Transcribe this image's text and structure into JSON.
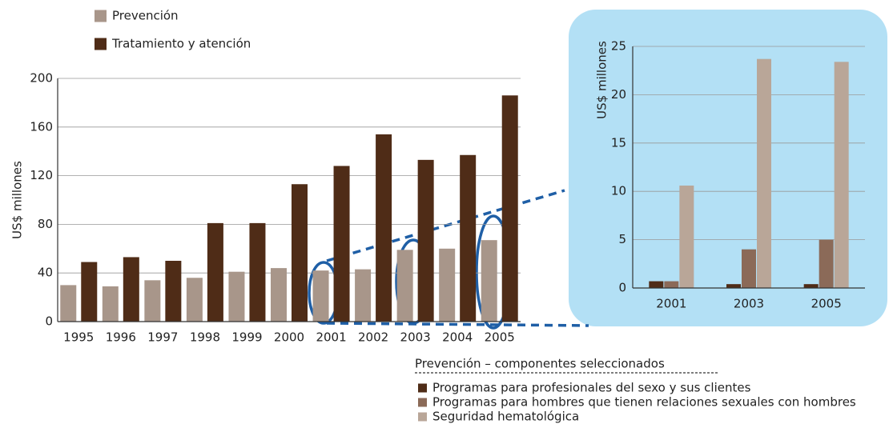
{
  "chart_data": [
    {
      "type": "bar",
      "y_label": "US$ millones",
      "categories": [
        "1995",
        "1996",
        "1997",
        "1998",
        "1999",
        "2000",
        "2001",
        "2002",
        "2003",
        "2004",
        "2005"
      ],
      "series": [
        {
          "name": "Prevención",
          "color": "#a8968a",
          "values": [
            30,
            29,
            34,
            36,
            41,
            44,
            42,
            43,
            59,
            60,
            67
          ]
        },
        {
          "name": "Tratamiento y atención",
          "color": "#4f2c17",
          "values": [
            49,
            53,
            50,
            81,
            81,
            113,
            128,
            154,
            133,
            137,
            186
          ]
        }
      ],
      "ylim": [
        0,
        200
      ],
      "yticks": [
        0,
        40,
        80,
        120,
        160,
        200
      ],
      "grid": true
    },
    {
      "type": "bar",
      "y_label": "US$ millones",
      "legend_title": "Prevención – componentes seleccionados",
      "categories": [
        "2001",
        "2003",
        "2005"
      ],
      "series": [
        {
          "name": "Programas para profesionales del sexo y sus clientes",
          "color": "#4f2c17",
          "values": [
            0.7,
            0.4,
            0.4
          ]
        },
        {
          "name": "Programas para hombres que tienen relaciones sexuales con hombres",
          "color": "#8b6a58",
          "values": [
            0.7,
            4,
            5
          ]
        },
        {
          "name": "Seguridad hematológica",
          "color": "#b9a698",
          "values": [
            10.6,
            23.7,
            23.4
          ]
        }
      ],
      "ylim": [
        0,
        25
      ],
      "yticks": [
        0,
        5,
        10,
        15,
        20,
        25
      ],
      "grid": true
    }
  ]
}
